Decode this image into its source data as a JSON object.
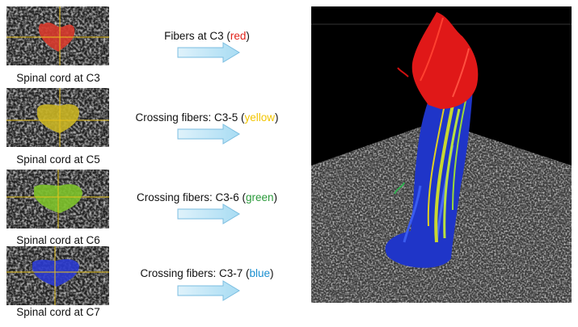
{
  "rows": [
    {
      "caption": "Spinal cord at C3",
      "label": "Fibers at C3 (",
      "color_word": "red",
      "label_end": ")"
    },
    {
      "caption": "Spinal cord at C5",
      "label": "Crossing fibers: C3-5 (",
      "color_word": "yellow",
      "label_end": ")"
    },
    {
      "caption": "Spinal cord at C6",
      "label": "Crossing fibers: C3-6 (",
      "color_word": "green",
      "label_end": ")"
    },
    {
      "caption": "Spinal cord at C7",
      "label": "Crossing fibers: C3-7 (",
      "color_word": "blue",
      "label_end": ")"
    }
  ]
}
